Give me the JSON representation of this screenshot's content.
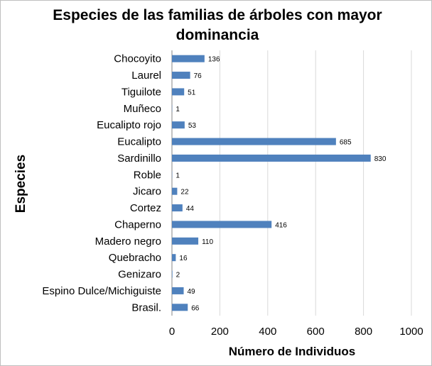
{
  "chart_data": {
    "type": "bar",
    "orientation": "horizontal",
    "title_lines": [
      "Especies de las familias de árboles con mayor",
      "dominancia"
    ],
    "xlabel": "Número de Individuos",
    "ylabel": "Especies",
    "categories": [
      "Chocoyito",
      "Laurel",
      "Tiguilote",
      "Muñeco",
      "Eucalipto rojo",
      "Eucalipto",
      "Sardinillo",
      "Roble",
      "Jicaro",
      "Cortez",
      "Chaperno",
      "Madero negro",
      "Quebracho",
      "Genizaro",
      "Espino Dulce/Michiguiste",
      "Brasil."
    ],
    "values": [
      136,
      76,
      51,
      1,
      53,
      685,
      830,
      1,
      22,
      44,
      416,
      110,
      16,
      2,
      49,
      66
    ],
    "xlim": [
      0,
      1000
    ],
    "xticks": [
      0,
      200,
      400,
      600,
      800,
      1000
    ],
    "grid": true,
    "bar_color": "#4f81bd",
    "grid_color": "#d9d9d9"
  }
}
